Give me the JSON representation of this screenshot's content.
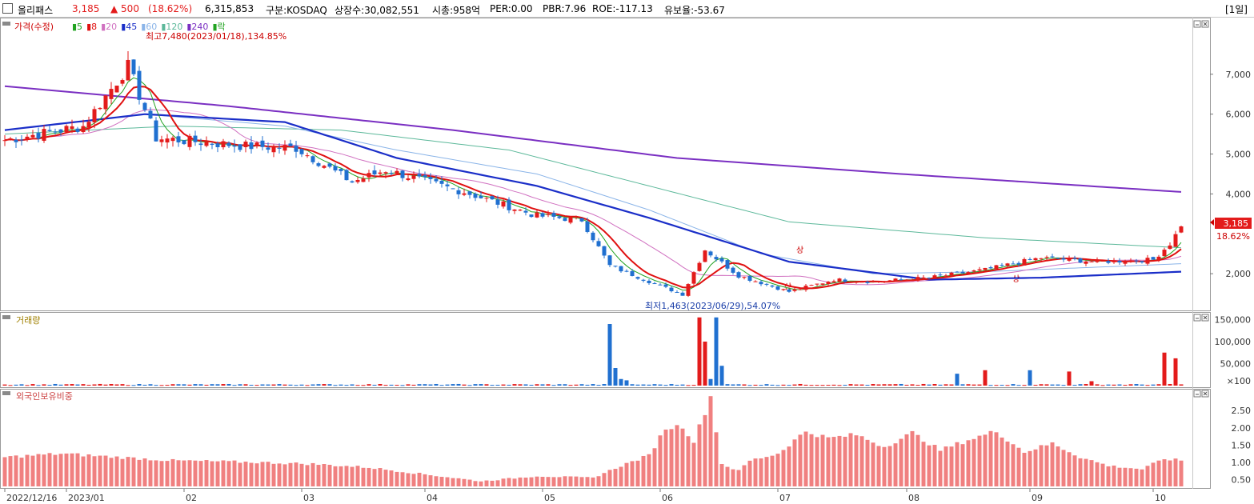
{
  "header": {
    "stock_name": "올리패스",
    "price": "3,185",
    "change": "▲ 500",
    "change_pct": "(18.62%)",
    "volume": "6,315,853",
    "market": "구분:KOSDAQ",
    "listed_shares": "상장수:30,082,551",
    "market_cap": "시총:958억",
    "per": "PER:0.00",
    "pbr": "PBR:7.96",
    "roe": "ROE:-117.13",
    "retention": "유보율:-53.67",
    "period": "[1일]"
  },
  "colors": {
    "up": "#e31b1b",
    "down": "#2070d0",
    "ma5": "#21a321",
    "ma8": "#e01010",
    "ma20": "#d070c0",
    "ma45": "#1a2ec8",
    "ma60": "#8ab4e8",
    "ma120": "#5cb89a",
    "ma240": "#7a2fc2",
    "volume_up": "#e31b1b",
    "volume_down": "#2070d0",
    "foreign": "#f08080"
  },
  "chart_data": [
    {
      "type": "candlestick",
      "legend": {
        "price_label": "가격(수정)",
        "ma": [
          {
            "label": "5",
            "color": "#21a321"
          },
          {
            "label": "8",
            "color": "#e01010"
          },
          {
            "label": "20",
            "color": "#d070c0"
          },
          {
            "label": "45",
            "color": "#1a2ec8"
          },
          {
            "label": "60",
            "color": "#8ab4e8"
          },
          {
            "label": "120",
            "color": "#5cb89a"
          },
          {
            "label": "240",
            "color": "#7a2fc2"
          },
          {
            "label": "락",
            "color": "#21a321"
          }
        ]
      },
      "y_ticks": [
        "7,000",
        "6,000",
        "5,000",
        "4,000",
        "2,000"
      ],
      "y_tick_values": [
        7000,
        6000,
        5000,
        4000,
        2000
      ],
      "ylim": [
        1200,
        8300
      ],
      "x_ticks": [
        "2022/12/16",
        "2023/01",
        "02",
        "03",
        "04",
        "05",
        "06",
        "07",
        "08",
        "09",
        "10"
      ],
      "annotations": {
        "high": "최고7,480(2023/01/18),134.85%",
        "low": "최저1,463(2023/06/29),54.07%",
        "last_price": "3,185",
        "last_pct": "18.62%",
        "marker1": "상",
        "marker2": "상",
        "marker3": "상"
      },
      "price_waypoints": [
        [
          0,
          5350
        ],
        [
          14,
          5700
        ],
        [
          22,
          7200
        ],
        [
          27,
          5400
        ],
        [
          43,
          5200
        ],
        [
          52,
          5150
        ],
        [
          62,
          4300
        ],
        [
          68,
          4600
        ],
        [
          78,
          4200
        ],
        [
          82,
          4050
        ],
        [
          95,
          3450
        ],
        [
          103,
          3350
        ],
        [
          108,
          2200
        ],
        [
          116,
          1750
        ],
        [
          121,
          1480
        ],
        [
          125,
          2600
        ],
        [
          131,
          1950
        ],
        [
          140,
          1550
        ],
        [
          148,
          1850
        ],
        [
          155,
          1800
        ],
        [
          165,
          1900
        ],
        [
          175,
          2100
        ],
        [
          185,
          2400
        ],
        [
          195,
          2300
        ],
        [
          205,
          2350
        ],
        [
          208,
          2750
        ],
        [
          210,
          3185
        ]
      ],
      "ma240_waypoints": [
        [
          0,
          6700
        ],
        [
          40,
          6200
        ],
        [
          80,
          5600
        ],
        [
          120,
          4900
        ],
        [
          160,
          4500
        ],
        [
          210,
          4050
        ]
      ],
      "ma120_waypoints": [
        [
          0,
          5500
        ],
        [
          30,
          5700
        ],
        [
          60,
          5600
        ],
        [
          90,
          5100
        ],
        [
          115,
          4200
        ],
        [
          140,
          3300
        ],
        [
          175,
          2900
        ],
        [
          210,
          2650
        ]
      ],
      "ma60_waypoints": [
        [
          0,
          5600
        ],
        [
          25,
          6000
        ],
        [
          50,
          5700
        ],
        [
          70,
          5100
        ],
        [
          95,
          4500
        ],
        [
          115,
          3600
        ],
        [
          135,
          2500
        ],
        [
          155,
          2000
        ],
        [
          175,
          2050
        ],
        [
          210,
          2250
        ]
      ],
      "ma45_waypoints": [
        [
          0,
          5600
        ],
        [
          25,
          6000
        ],
        [
          50,
          5800
        ],
        [
          70,
          4900
        ],
        [
          95,
          4200
        ],
        [
          115,
          3400
        ],
        [
          140,
          2300
        ],
        [
          165,
          1850
        ],
        [
          185,
          1900
        ],
        [
          210,
          2050
        ]
      ]
    },
    {
      "type": "bar",
      "title": "거래량",
      "y_ticks": [
        "150,000",
        "100,000",
        "50,000",
        "×100"
      ],
      "y_tick_values": [
        150000,
        100000,
        50000,
        0
      ],
      "ylim": [
        0,
        160000
      ],
      "spikes": [
        [
          108,
          140000
        ],
        [
          109,
          40000
        ],
        [
          110,
          15000
        ],
        [
          111,
          12000
        ],
        [
          124,
          155000
        ],
        [
          125,
          100000
        ],
        [
          126,
          15000
        ],
        [
          127,
          155000
        ],
        [
          128,
          45000
        ],
        [
          170,
          27000
        ],
        [
          175,
          35000
        ],
        [
          183,
          35000
        ],
        [
          190,
          32000
        ],
        [
          194,
          10000
        ],
        [
          207,
          75000
        ],
        [
          209,
          62000
        ]
      ],
      "baseline": 2500
    },
    {
      "type": "bar",
      "title": "외국인보유비중",
      "y_ticks": [
        "2.50",
        "2.00",
        "1.50",
        "1.00",
        "0.50"
      ],
      "y_tick_values": [
        2.5,
        2.0,
        1.5,
        1.0,
        0.5
      ],
      "ylim": [
        0.3,
        2.9
      ],
      "waypoints": [
        [
          0,
          1.15
        ],
        [
          10,
          1.25
        ],
        [
          20,
          1.15
        ],
        [
          30,
          1.05
        ],
        [
          45,
          1.0
        ],
        [
          55,
          0.95
        ],
        [
          65,
          0.85
        ],
        [
          75,
          0.65
        ],
        [
          85,
          0.45
        ],
        [
          95,
          0.6
        ],
        [
          105,
          0.55
        ],
        [
          110,
          0.9
        ],
        [
          115,
          1.2
        ],
        [
          118,
          2.0
        ],
        [
          121,
          2.05
        ],
        [
          123,
          1.6
        ],
        [
          126,
          2.9
        ],
        [
          128,
          0.95
        ],
        [
          131,
          0.75
        ],
        [
          133,
          1.05
        ],
        [
          138,
          1.25
        ],
        [
          143,
          1.9
        ],
        [
          147,
          1.7
        ],
        [
          152,
          1.8
        ],
        [
          157,
          1.45
        ],
        [
          162,
          1.85
        ],
        [
          167,
          1.35
        ],
        [
          172,
          1.65
        ],
        [
          177,
          1.9
        ],
        [
          182,
          1.3
        ],
        [
          187,
          1.55
        ],
        [
          192,
          1.15
        ],
        [
          197,
          0.9
        ],
        [
          203,
          0.8
        ],
        [
          207,
          1.1
        ],
        [
          210,
          1.05
        ]
      ]
    }
  ]
}
